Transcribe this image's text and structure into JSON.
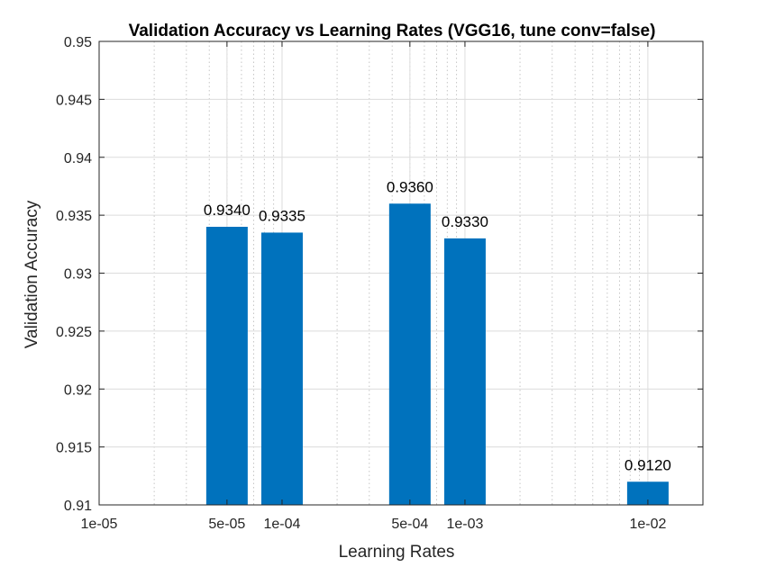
{
  "chart_data": {
    "type": "bar",
    "title": "Validation Accuracy vs Learning Rates (VGG16, tune conv=false)",
    "xlabel": "Learning Rates",
    "ylabel": "Validation Accuracy",
    "x_scale": "log",
    "xlim": [
      1e-05,
      0.02
    ],
    "ylim": [
      0.91,
      0.95
    ],
    "grid": true,
    "x": [
      5e-05,
      0.0001,
      0.0005,
      0.001,
      0.01
    ],
    "values": [
      0.934,
      0.9335,
      0.936,
      0.933,
      0.912
    ],
    "data_labels": [
      "0.9340",
      "0.9335",
      "0.9360",
      "0.9330",
      "0.9120"
    ],
    "x_ticks": [
      {
        "value": 1e-05,
        "label": "1e-05"
      },
      {
        "value": 5e-05,
        "label": "5e-05"
      },
      {
        "value": 0.0001,
        "label": "1e-04"
      },
      {
        "value": 0.0005,
        "label": "5e-04"
      },
      {
        "value": 0.001,
        "label": "1e-03"
      },
      {
        "value": 0.01,
        "label": "1e-02"
      }
    ],
    "y_ticks": [
      {
        "value": 0.91,
        "label": "0.91"
      },
      {
        "value": 0.915,
        "label": "0.915"
      },
      {
        "value": 0.92,
        "label": "0.92"
      },
      {
        "value": 0.925,
        "label": "0.925"
      },
      {
        "value": 0.93,
        "label": "0.93"
      },
      {
        "value": 0.935,
        "label": "0.935"
      },
      {
        "value": 0.94,
        "label": "0.94"
      },
      {
        "value": 0.945,
        "label": "0.945"
      },
      {
        "value": 0.95,
        "label": "0.95"
      }
    ],
    "bar_color": "#0072BD"
  }
}
